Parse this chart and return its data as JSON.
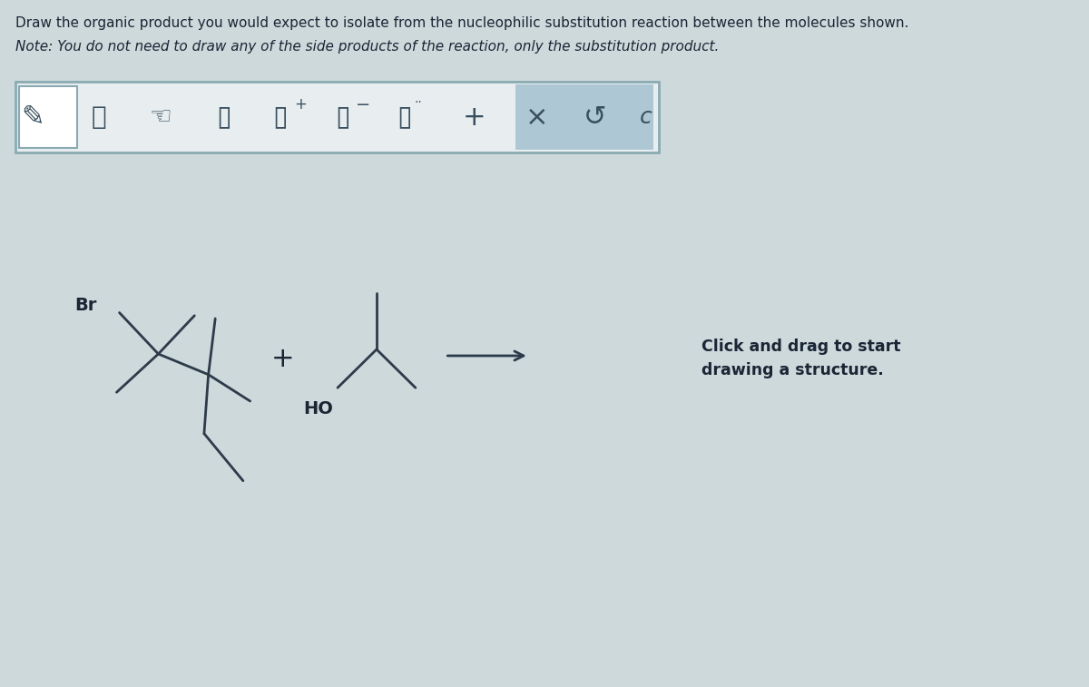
{
  "title_line1": "Draw the organic product you would expect to isolate from the nucleophilic substitution reaction between the molecules shown.",
  "title_line2": "Note: You do not need to draw any of the side products of the reaction, only the substitution product.",
  "bg_color": "#cdd9db",
  "toolbar_bg": "#e8eef0",
  "toolbar_border": "#8aaab2",
  "toolbar_selected_bg": "#adc8d4",
  "molecule1_label": "Br",
  "molecule2_label": "HO",
  "click_text_line1": "Click and drag to start",
  "click_text_line2": "drawing a structure.",
  "line_color": "#2d3a4a",
  "text_color": "#1a2535",
  "toolbar_icon_color": "#3a5060",
  "plus_sign": "+",
  "arrow": "→"
}
